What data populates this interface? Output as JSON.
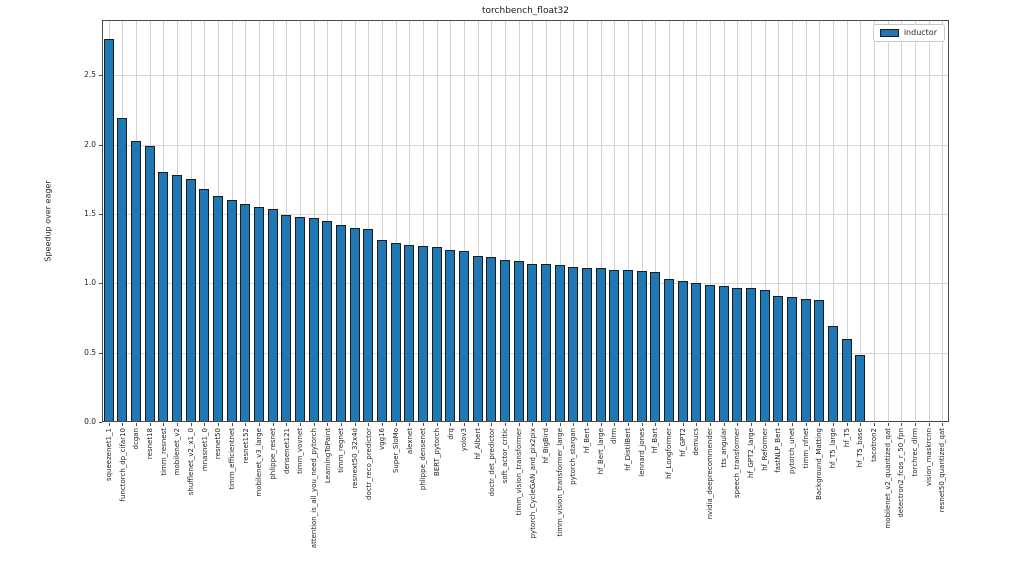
{
  "title": "torchbench_float32",
  "ylabel": "Speedup over eager",
  "legend": {
    "label": "inductor",
    "swatch_color": "#1f77b4"
  },
  "colors": {
    "bar_fill": "#1f77b4",
    "bar_edge": "#1c1c1c",
    "grid": "#d4d4d4",
    "spine": "#4a4a4a",
    "text": "#262626"
  },
  "chart_data": {
    "type": "bar",
    "title": "torchbench_float32",
    "xlabel": "",
    "ylabel": "Speedup over eager",
    "series_name": "inductor",
    "legend_position": "upper right",
    "grid": true,
    "ylim": [
      0,
      2.9
    ],
    "yticks": [
      0.0,
      0.5,
      1.0,
      1.5,
      2.0,
      2.5
    ],
    "ytick_labels": [
      "0.0",
      "0.5",
      "1.0",
      "1.5",
      "2.0",
      "2.5"
    ],
    "categories": [
      "squeezenet1_1",
      "functorch_dp_cifar10",
      "dcgan",
      "resnet18",
      "timm_resnest",
      "mobilenet_v2",
      "shufflenet_v2_x1_0",
      "mnasnet1_0",
      "resnet50",
      "timm_efficientnet",
      "resnet152",
      "mobilenet_v3_large",
      "phlippe_resnet",
      "densenet121",
      "timm_vovnet",
      "attention_is_all_you_need_pytorch",
      "LearningToPaint",
      "timm_regnet",
      "resnext50_32x4d",
      "doctr_reco_predictor",
      "vgg16",
      "Super_SloMo",
      "alexnet",
      "phlippe_densenet",
      "BERT_pytorch",
      "drq",
      "yolov3",
      "hf_Albert",
      "doctr_det_predictor",
      "soft_actor_critic",
      "timm_vision_transformer",
      "pytorch_CycleGAN_and_pix2pix",
      "hf_BigBird",
      "timm_vision_transformer_large",
      "pytorch_stargan",
      "hf_Bert",
      "hf_Bert_large",
      "dlrm",
      "hf_DistilBert",
      "lennard_jones",
      "hf_Bart",
      "hf_Longformer",
      "hf_GPT2",
      "demucs",
      "nvidia_deeprecommender",
      "tts_angular",
      "speech_transformer",
      "hf_GPT2_large",
      "hf_Reformer",
      "fastNLP_Bert",
      "pytorch_unet",
      "timm_nfnet",
      "Background_Matting",
      "hf_T5_large",
      "hf_T5",
      "hf_T5_base",
      "tacotron2",
      "mobilenet_v2_quantized_qat",
      "detectron2_fcos_r_50_fpn",
      "torchrec_dlrm",
      "vision_maskrcnn",
      "resnet50_quantized_qat"
    ],
    "values": [
      2.76,
      2.19,
      2.03,
      1.99,
      1.8,
      1.78,
      1.75,
      1.68,
      1.63,
      1.6,
      1.57,
      1.55,
      1.54,
      1.49,
      1.48,
      1.47,
      1.45,
      1.42,
      1.4,
      1.39,
      1.31,
      1.29,
      1.28,
      1.27,
      1.26,
      1.24,
      1.23,
      1.2,
      1.19,
      1.17,
      1.16,
      1.14,
      1.14,
      1.13,
      1.12,
      1.11,
      1.11,
      1.1,
      1.1,
      1.09,
      1.08,
      1.03,
      1.02,
      1.0,
      0.99,
      0.98,
      0.97,
      0.97,
      0.95,
      0.91,
      0.9,
      0.89,
      0.88,
      0.69,
      0.6,
      0.48,
      null,
      null,
      null,
      null,
      null,
      null
    ]
  }
}
